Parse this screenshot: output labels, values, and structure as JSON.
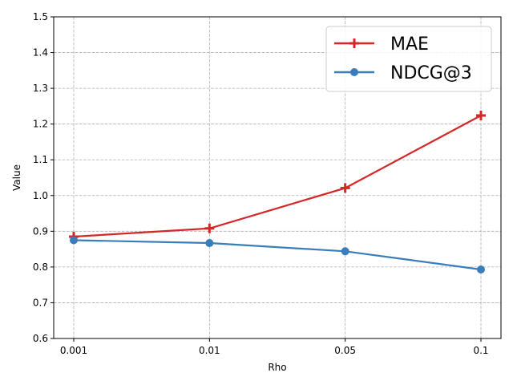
{
  "chart_data": {
    "type": "line",
    "categories": [
      "0.001",
      "0.01",
      "0.05",
      "0.1"
    ],
    "series": [
      {
        "name": "MAE",
        "values": [
          0.885,
          0.908,
          1.021,
          1.224
        ],
        "color": "#d62728",
        "marker": "plus"
      },
      {
        "name": "NDCG@3",
        "values": [
          0.875,
          0.867,
          0.844,
          0.793
        ],
        "color": "#3a7dba",
        "marker": "circle"
      }
    ],
    "xlabel": "Rho",
    "ylabel": "Value",
    "ylim": [
      0.6,
      1.5
    ],
    "yticks": [
      "0.6",
      "0.7",
      "0.8",
      "0.9",
      "1.0",
      "1.1",
      "1.2",
      "1.3",
      "1.4",
      "1.5"
    ],
    "grid": true,
    "legend_position": "top-right"
  }
}
